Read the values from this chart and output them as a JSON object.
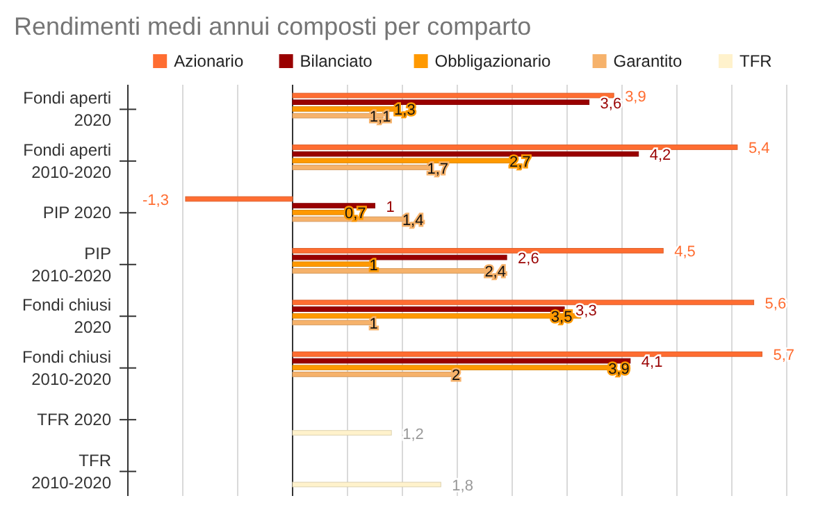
{
  "chart_data": {
    "type": "bar",
    "orientation": "horizontal",
    "title": "Rendimenti medi annui composti per comparto",
    "categories": [
      "Fondi aperti 2020",
      "Fondi aperti 2010-2020",
      "PIP 2020",
      "PIP 2010-2020",
      "Fondi chiusi 2020",
      "Fondi chiusi 2010-2020",
      "TFR 2020",
      "TFR 2010-2020"
    ],
    "series": [
      {
        "name": "Azionario",
        "color": "#ff6d31",
        "values": [
          3.9,
          5.4,
          -1.3,
          4.5,
          5.6,
          5.7,
          null,
          null
        ],
        "value_labels": [
          "3,9",
          "5,4",
          "-1,3",
          "4,5",
          "5,6",
          "5,7",
          null,
          null
        ]
      },
      {
        "name": "Bilanciato",
        "color": "#990000",
        "values": [
          3.6,
          4.2,
          1,
          2.6,
          3.3,
          4.1,
          null,
          null
        ],
        "value_labels": [
          "3,6",
          "4,2",
          "1",
          "2,6",
          "3,3",
          "4,1",
          null,
          null
        ]
      },
      {
        "name": "Obbligazionario",
        "color": "#ff9900",
        "values": [
          1.3,
          2.7,
          0.7,
          1,
          3.5,
          3.9,
          null,
          null
        ],
        "value_labels": [
          "1,3",
          "2,7",
          "0,7",
          "1",
          "3,5",
          "3,9",
          null,
          null
        ]
      },
      {
        "name": "Garantito",
        "color": "#f6b26b",
        "values": [
          1.1,
          1.7,
          1.4,
          2.4,
          1,
          2,
          null,
          null
        ],
        "value_labels": [
          "1,1",
          "1,7",
          "1,4",
          "2,4",
          "1",
          "2",
          null,
          null
        ]
      },
      {
        "name": "TFR",
        "color": "#fff2cc",
        "values": [
          null,
          null,
          null,
          null,
          null,
          null,
          1.2,
          1.8
        ],
        "value_labels": [
          null,
          null,
          null,
          null,
          null,
          null,
          "1,2",
          "1,8"
        ]
      }
    ],
    "xlim": [
      -2,
      6
    ],
    "xticks": [
      {
        "value": -2,
        "label": null
      },
      {
        "value": -1.3333,
        "label": null
      },
      {
        "value": -0.6667,
        "label": null
      },
      {
        "value": 0,
        "label": null
      },
      {
        "value": 0.6667,
        "label": null
      },
      {
        "value": 1.3333,
        "label": null
      },
      {
        "value": 2,
        "label": null
      },
      {
        "value": 2.6667,
        "label": null
      },
      {
        "value": 3.3333,
        "label": null
      },
      {
        "value": 4,
        "label": null
      },
      {
        "value": 4.6667,
        "label": null
      },
      {
        "value": 5.3333,
        "label": null
      },
      {
        "value": 6,
        "label": null
      }
    ],
    "tick_labels": "y",
    "grid": "x",
    "legend": "top"
  }
}
